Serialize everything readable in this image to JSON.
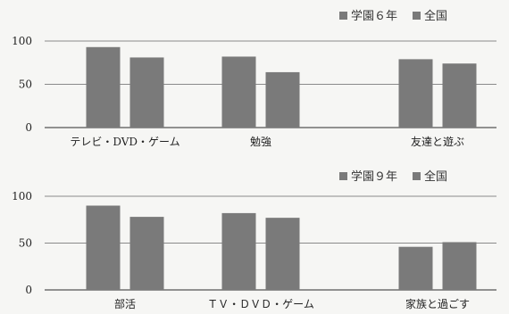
{
  "chart_data": [
    {
      "type": "bar",
      "categories": [
        "テレビ・DVD・ゲーム",
        "勉強",
        "友達と遊ぶ"
      ],
      "series": [
        {
          "name": "学園６年",
          "values": [
            93,
            82,
            79
          ]
        },
        {
          "name": "全国",
          "values": [
            81,
            64,
            74
          ]
        }
      ],
      "yticks": [
        "100",
        "50",
        "0"
      ],
      "ylim": [
        0,
        100
      ],
      "legend": "top-right",
      "grid": true,
      "colors": [
        "#7a7a7a",
        "#7a7a7a"
      ]
    },
    {
      "type": "bar",
      "categories": [
        "部活",
        "ＴＶ・ＤＶＤ・ゲーム",
        "家族と過ごす"
      ],
      "series": [
        {
          "name": "学園９年",
          "values": [
            90,
            82,
            46
          ]
        },
        {
          "name": "全国",
          "values": [
            78,
            77,
            51
          ]
        }
      ],
      "yticks": [
        "100",
        "50",
        "0"
      ],
      "ylim": [
        0,
        100
      ],
      "legend": "top-right",
      "grid": true,
      "colors": [
        "#7a7a7a",
        "#7a7a7a"
      ]
    }
  ]
}
